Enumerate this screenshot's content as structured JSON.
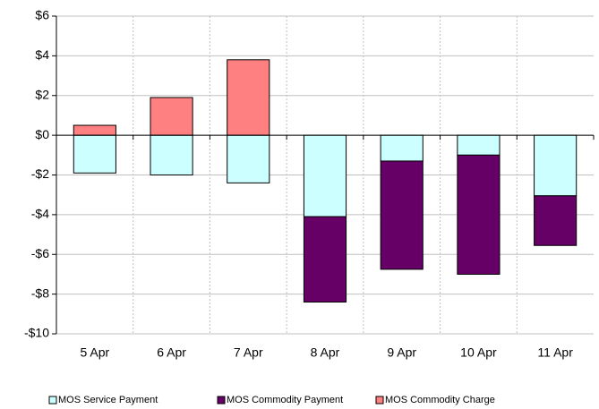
{
  "chart_data": {
    "type": "bar",
    "stacked": true,
    "categories": [
      "5 Apr",
      "6 Apr",
      "7 Apr",
      "8 Apr",
      "9 Apr",
      "10 Apr",
      "11 Apr"
    ],
    "series": [
      {
        "name": "MOS Service Payment",
        "color": "#ccffff",
        "values": [
          -1.9,
          -2.0,
          -2.4,
          -4.1,
          -1.3,
          -1.0,
          -3.05
        ]
      },
      {
        "name": "MOS Commodity Payment",
        "color": "#660066",
        "values": [
          0,
          0,
          0,
          -4.3,
          -5.45,
          -6.0,
          -2.5
        ]
      },
      {
        "name": "MOS Commodity Charge",
        "color": "#ff8080",
        "values": [
          0.5,
          1.9,
          3.8,
          0,
          0,
          0,
          0
        ]
      }
    ],
    "ylim": [
      -10,
      6
    ],
    "yticks": [
      {
        "value": -10,
        "label": "-$10"
      },
      {
        "value": -8,
        "label": "-$8"
      },
      {
        "value": -6,
        "label": "-$6"
      },
      {
        "value": -4,
        "label": "-$4"
      },
      {
        "value": -2,
        "label": "-$2"
      },
      {
        "value": 0,
        "label": "$0"
      },
      {
        "value": 2,
        "label": "$2"
      },
      {
        "value": 4,
        "label": "$4"
      },
      {
        "value": 6,
        "label": "$6"
      }
    ],
    "grid": true,
    "legend": "bottom"
  }
}
